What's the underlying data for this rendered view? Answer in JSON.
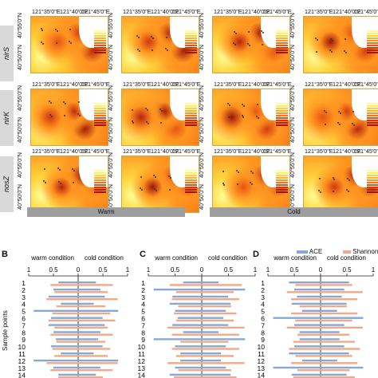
{
  "maps": {
    "lon_labels": [
      "121°35'0\"E",
      "121°40'0\"E",
      "121°45'0\"E"
    ],
    "lat_labels": [
      "40°55'0\"N",
      "40°50'0\"N"
    ],
    "gene_rows": [
      "nirS",
      "nirK",
      "nosZ"
    ],
    "conditions": [
      "Warm",
      "Cold"
    ],
    "colors": [
      "#ffff99",
      "#ffee66",
      "#ffd23c",
      "#ffb42a",
      "#ff9420",
      "#f47318",
      "#e65312",
      "#d1380f",
      "#b8230d",
      "#9e150b"
    ]
  },
  "bar_panels": {
    "letters": [
      "B",
      "C",
      "D"
    ],
    "warm_label": "warm condition",
    "cold_label": "cold condition",
    "axis_ticks": [
      "1",
      "0.5",
      "0",
      "0.5",
      "1"
    ],
    "y_axis_label": "Sample points",
    "sample_points": [
      "1",
      "2",
      "3",
      "4",
      "5",
      "6",
      "7",
      "8",
      "9",
      "10",
      "11",
      "12",
      "13",
      "14"
    ],
    "legend": [
      {
        "name": "ACE",
        "color": "#86a9d3"
      },
      {
        "name": "Shannon",
        "color": "#f0a98a"
      }
    ]
  }
}
